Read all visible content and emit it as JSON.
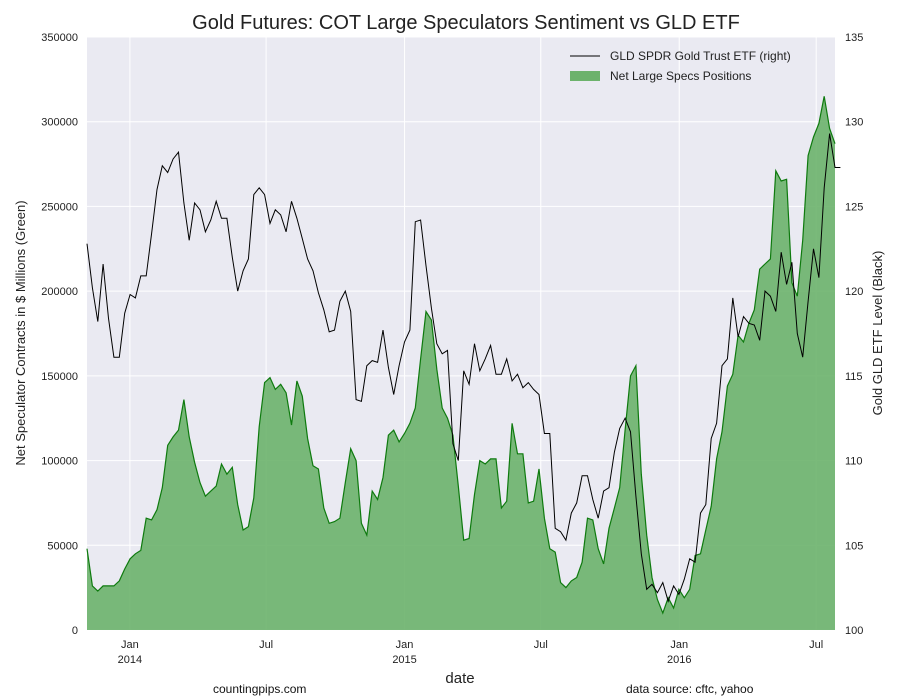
{
  "chart_data": {
    "type": "area",
    "title": "Gold Futures: COT Large Speculators Sentiment vs GLD ETF",
    "xlabel": "date",
    "ylabel_left": "Net Speculator Contracts in $ Millions (Green)",
    "ylabel_right": "Gold GLD ETF Level (Black)",
    "ylim_left": [
      0,
      350000
    ],
    "ylim_right": [
      100,
      135
    ],
    "yticks_left": [
      "0",
      "50000",
      "100000",
      "150000",
      "200000",
      "250000",
      "300000",
      "350000"
    ],
    "yticks_right": [
      "100",
      "105",
      "110",
      "115",
      "120",
      "125",
      "130",
      "135"
    ],
    "xlim": [
      "2013-11-05",
      "2016-07-26"
    ],
    "xticks": [
      {
        "date": "2014-01-01",
        "label": "Jan",
        "label2": "2014"
      },
      {
        "date": "2014-07-01",
        "label": "Jul",
        "label2": ""
      },
      {
        "date": "2015-01-01",
        "label": "Jan",
        "label2": "2015"
      },
      {
        "date": "2015-07-01",
        "label": "Jul",
        "label2": ""
      },
      {
        "date": "2016-01-01",
        "label": "Jan",
        "label2": "2016"
      },
      {
        "date": "2016-07-01",
        "label": "Jul",
        "label2": ""
      }
    ],
    "grid": true,
    "legend_position": "top-right",
    "series": [
      {
        "name": "GLD SPDR Gold Trust ETF (right)",
        "axis": "right",
        "color": "#000000",
        "values": [
          122.8,
          120.2,
          118.2,
          121.6,
          118.4,
          116.1,
          116.1,
          118.7,
          119.8,
          119.6,
          120.9,
          120.9,
          123.4,
          126.0,
          127.4,
          127.0,
          127.8,
          128.2,
          125.2,
          123.0,
          125.2,
          124.8,
          123.5,
          124.2,
          125.3,
          124.3,
          124.3,
          122.0,
          120.0,
          121.2,
          121.9,
          125.7,
          126.1,
          125.7,
          124.0,
          124.8,
          124.5,
          123.5,
          125.3,
          124.3,
          123.1,
          121.9,
          121.2,
          119.9,
          118.9,
          117.6,
          117.7,
          119.4,
          120.0,
          118.8,
          113.6,
          113.5,
          115.6,
          115.9,
          115.8,
          117.7,
          115.5,
          113.9,
          115.6,
          117.0,
          117.7,
          124.1,
          124.2,
          121.5,
          119.0,
          116.9,
          116.3,
          116.5,
          111.0,
          110.0,
          115.3,
          114.5,
          116.9,
          115.3,
          116.0,
          116.8,
          115.1,
          115.1,
          116.0,
          114.7,
          115.1,
          114.3,
          114.6,
          114.2,
          113.9,
          111.6,
          111.6,
          106.0,
          105.8,
          105.3,
          106.9,
          107.5,
          109.1,
          109.1,
          107.7,
          106.6,
          108.2,
          108.4,
          110.5,
          111.9,
          112.5,
          111.7,
          107.9,
          104.5,
          102.4,
          102.7,
          102.2,
          102.8,
          101.7,
          102.6,
          102.1,
          103.0,
          104.2,
          104.0,
          106.9,
          107.4,
          111.3,
          112.2,
          115.6,
          116.0,
          119.6,
          117.3,
          118.5,
          118.1,
          118.0,
          117.1,
          120.0,
          119.7,
          118.8,
          122.3,
          120.4,
          121.7,
          117.5,
          116.1,
          119.4,
          122.5,
          120.8,
          126.1,
          129.3,
          127.3,
          127.3
        ]
      },
      {
        "name": "Net Large Specs Positions",
        "axis": "left",
        "color": "#2e8b2e",
        "values": [
          48000,
          26000,
          23000,
          26000,
          26000,
          26000,
          29000,
          36000,
          42000,
          45000,
          47000,
          66000,
          65000,
          71000,
          84000,
          109000,
          114000,
          118000,
          136000,
          114000,
          99000,
          87000,
          79000,
          82000,
          85000,
          98000,
          92000,
          96000,
          74000,
          59000,
          61000,
          78000,
          120000,
          146000,
          149000,
          142000,
          145000,
          140000,
          121000,
          147000,
          138000,
          113000,
          97000,
          95000,
          72000,
          63000,
          64000,
          66000,
          87000,
          107000,
          100000,
          63000,
          56000,
          82000,
          77000,
          90000,
          115000,
          118000,
          111000,
          116000,
          122000,
          131000,
          160000,
          188000,
          183000,
          154000,
          131000,
          125000,
          115000,
          85000,
          53000,
          54000,
          80000,
          100000,
          98000,
          101000,
          101000,
          72000,
          76000,
          122000,
          104000,
          104000,
          75000,
          76000,
          95000,
          66000,
          48000,
          46000,
          28000,
          25000,
          29000,
          31000,
          40000,
          66000,
          65000,
          48000,
          39000,
          60000,
          72000,
          84000,
          118000,
          150000,
          156000,
          92000,
          56000,
          31000,
          18000,
          10000,
          19000,
          13000,
          24000,
          19000,
          24000,
          44000,
          45000,
          59000,
          73000,
          101000,
          117000,
          144000,
          151000,
          174000,
          170000,
          181000,
          189000,
          213000,
          216000,
          219000,
          271000,
          265000,
          266000,
          205000,
          197000,
          230000,
          280000,
          291000,
          299000,
          315000,
          296000,
          287000
        ]
      }
    ]
  },
  "footer": {
    "left": "countingpips.com",
    "right": "data source: cftc, yahoo"
  }
}
